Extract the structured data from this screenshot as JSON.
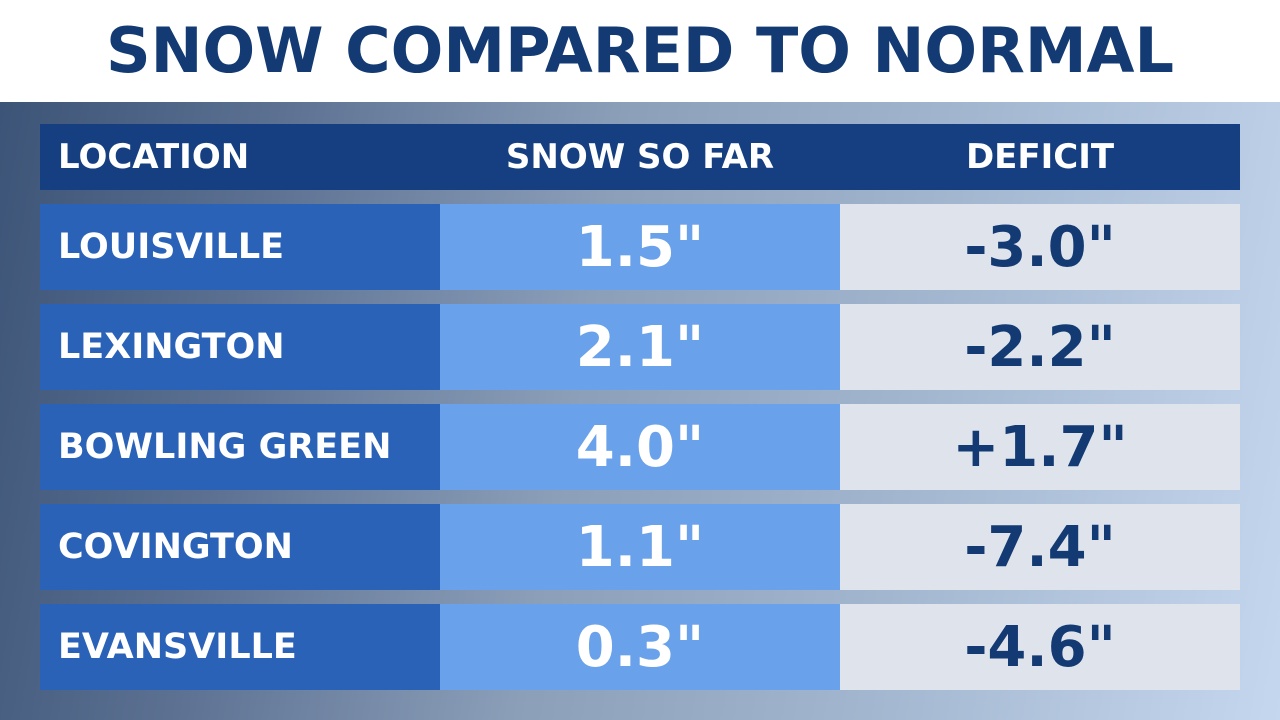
{
  "title": "SNOW COMPARED TO NORMAL",
  "headers": {
    "location": "LOCATION",
    "snow": "SNOW SO FAR",
    "deficit": "DEFICIT"
  },
  "rows": [
    {
      "location": "LOUISVILLE",
      "snow": "1.5\"",
      "deficit": "-3.0\""
    },
    {
      "location": "LEXINGTON",
      "snow": "2.1\"",
      "deficit": "-2.2\""
    },
    {
      "location": "BOWLING GREEN",
      "snow": "4.0\"",
      "deficit": "+1.7\""
    },
    {
      "location": "COVINGTON",
      "snow": "1.1\"",
      "deficit": "-7.4\""
    },
    {
      "location": "EVANSVILLE",
      "snow": "0.3\"",
      "deficit": "-4.6\""
    }
  ],
  "colors": {
    "title": "#133a73",
    "header_bg": "#153f80",
    "location_bg": "#2a62b8",
    "snow_bg": "#6aa1eb",
    "deficit_bg": "#dfe4ec",
    "deficit_text": "#133a73"
  }
}
